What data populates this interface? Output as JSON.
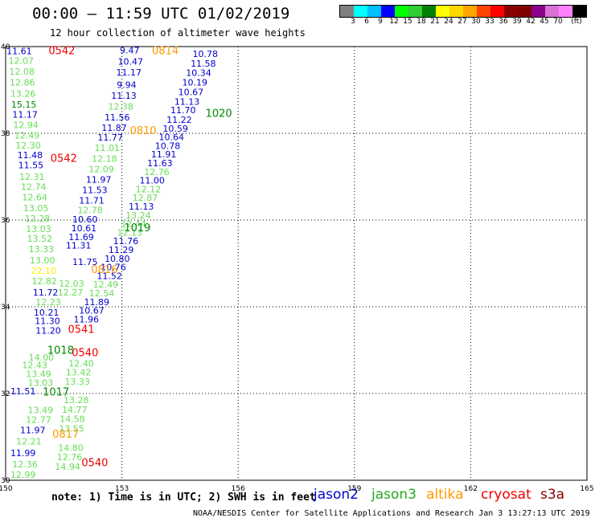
{
  "header": {
    "title": "00:00 – 11:59 UTC 01/02/2019",
    "subtitle": "12 hour collection of altimeter wave heights"
  },
  "colorbar": {
    "colors": [
      "#808080",
      "#00ffff",
      "#00bfff",
      "#0000ff",
      "#00ff00",
      "#32cd32",
      "#008000",
      "#ffff00",
      "#ffd700",
      "#ffa500",
      "#ff4500",
      "#ff0000",
      "#8b0000",
      "#800000",
      "#8b008b",
      "#da70d6",
      "#ff80ff",
      "#000000"
    ],
    "labels": [
      "3",
      "6",
      "9",
      "12",
      "15",
      "18",
      "21",
      "24",
      "27",
      "30",
      "33",
      "36",
      "39",
      "42",
      "45",
      "70",
      "(ft)"
    ]
  },
  "axes": {
    "lon_ticks": [
      "150",
      "153",
      "156",
      "159",
      "162",
      "165"
    ],
    "lat_ticks": [
      "30",
      "32",
      "34",
      "36",
      "38",
      "40"
    ],
    "lon_range": [
      150,
      165
    ],
    "lat_range": [
      30,
      40
    ]
  },
  "series_colors": {
    "jason2": "#0000cc",
    "jason3": "#66dd55",
    "jason3_dark": "#008800",
    "altika": "#ff9900",
    "cryosat": "#ee0000",
    "s3a": "#880000",
    "yellow": "#ffee00"
  },
  "time_labels": [
    {
      "text": "0542",
      "lon": 151.45,
      "lat": 39.82,
      "color": "cryosat"
    },
    {
      "text": "0814",
      "lon": 154.12,
      "lat": 39.82,
      "color": "altika"
    },
    {
      "text": "1020",
      "lon": 155.5,
      "lat": 38.38,
      "color": "jason3_dark"
    },
    {
      "text": "0810",
      "lon": 153.55,
      "lat": 37.98,
      "color": "altika"
    },
    {
      "text": "0542",
      "lon": 151.5,
      "lat": 37.34,
      "color": "cryosat"
    },
    {
      "text": "1019",
      "lon": 153.4,
      "lat": 35.74,
      "color": "jason3_dark"
    },
    {
      "text": "0816",
      "lon": 152.55,
      "lat": 34.78,
      "color": "altika"
    },
    {
      "text": "0541",
      "lon": 151.95,
      "lat": 33.4,
      "color": "cryosat"
    },
    {
      "text": "1018",
      "lon": 151.42,
      "lat": 32.92,
      "color": "jason3_dark"
    },
    {
      "text": "0540",
      "lon": 152.05,
      "lat": 32.86,
      "color": "cryosat"
    },
    {
      "text": "1017",
      "lon": 151.3,
      "lat": 31.95,
      "color": "jason3_dark"
    },
    {
      "text": "0817",
      "lon": 151.55,
      "lat": 30.98,
      "color": "altika"
    },
    {
      "text": "0540",
      "lon": 152.3,
      "lat": 30.32,
      "color": "cryosat"
    }
  ],
  "wave_heights": [
    {
      "text": "11.61",
      "lon": 150.35,
      "lat": 39.82,
      "color": "jason2"
    },
    {
      "text": "12.07",
      "lon": 150.4,
      "lat": 39.6,
      "color": "jason3"
    },
    {
      "text": "12.08",
      "lon": 150.42,
      "lat": 39.35,
      "color": "jason3"
    },
    {
      "text": "12.86",
      "lon": 150.43,
      "lat": 39.1,
      "color": "jason3"
    },
    {
      "text": "13.26",
      "lon": 150.45,
      "lat": 38.84,
      "color": "jason3"
    },
    {
      "text": "15.15",
      "lon": 150.47,
      "lat": 38.59,
      "color": "jason3_dark"
    },
    {
      "text": "11.17",
      "lon": 150.5,
      "lat": 38.36,
      "color": "jason2"
    },
    {
      "text": "12.94",
      "lon": 150.52,
      "lat": 38.12,
      "color": "jason3"
    },
    {
      "text": "12.49",
      "lon": 150.55,
      "lat": 37.88,
      "color": "jason3"
    },
    {
      "text": "12.30",
      "lon": 150.58,
      "lat": 37.65,
      "color": "jason3"
    },
    {
      "text": "11.48",
      "lon": 150.63,
      "lat": 37.43,
      "color": "jason2"
    },
    {
      "text": "11.55",
      "lon": 150.65,
      "lat": 37.19,
      "color": "jason2"
    },
    {
      "text": "12.31",
      "lon": 150.68,
      "lat": 36.93,
      "color": "jason3"
    },
    {
      "text": "12.74",
      "lon": 150.72,
      "lat": 36.69,
      "color": "jason3"
    },
    {
      "text": "12.64",
      "lon": 150.75,
      "lat": 36.45,
      "color": "jason3"
    },
    {
      "text": "13.05",
      "lon": 150.78,
      "lat": 36.2,
      "color": "jason3"
    },
    {
      "text": "12.28",
      "lon": 150.82,
      "lat": 35.96,
      "color": "jason3"
    },
    {
      "text": "13.03",
      "lon": 150.85,
      "lat": 35.72,
      "color": "jason3"
    },
    {
      "text": "13.52",
      "lon": 150.88,
      "lat": 35.5,
      "color": "jason3"
    },
    {
      "text": "13.33",
      "lon": 150.92,
      "lat": 35.26,
      "color": "jason3"
    },
    {
      "text": "13.00",
      "lon": 150.95,
      "lat": 35.0,
      "color": "jason3"
    },
    {
      "text": "22.10",
      "lon": 150.98,
      "lat": 34.76,
      "color": "yellow"
    },
    {
      "text": "12.82",
      "lon": 151.0,
      "lat": 34.52,
      "color": "jason3"
    },
    {
      "text": "11.72",
      "lon": 151.03,
      "lat": 34.26,
      "color": "jason2"
    },
    {
      "text": "12.23",
      "lon": 151.1,
      "lat": 34.04,
      "color": "jason3"
    },
    {
      "text": "10.21",
      "lon": 151.05,
      "lat": 33.8,
      "color": "jason2"
    },
    {
      "text": "11.30",
      "lon": 151.08,
      "lat": 33.6,
      "color": "jason2"
    },
    {
      "text": "11.20",
      "lon": 151.1,
      "lat": 33.38,
      "color": "jason2"
    },
    {
      "text": "14.00",
      "lon": 150.92,
      "lat": 32.76,
      "color": "jason3"
    },
    {
      "text": "12.43",
      "lon": 150.75,
      "lat": 32.58,
      "color": "jason3"
    },
    {
      "text": "13.49",
      "lon": 150.85,
      "lat": 32.38,
      "color": "jason3"
    },
    {
      "text": "13.03",
      "lon": 150.9,
      "lat": 32.18,
      "color": "jason3"
    },
    {
      "text": "11.51",
      "lon": 150.45,
      "lat": 31.98,
      "color": "jason2"
    },
    {
      "text": "13.49",
      "lon": 150.9,
      "lat": 31.55,
      "color": "jason3"
    },
    {
      "text": "12.77",
      "lon": 150.85,
      "lat": 31.32,
      "color": "jason3"
    },
    {
      "text": "11.97",
      "lon": 150.7,
      "lat": 31.08,
      "color": "jason2"
    },
    {
      "text": "12.21",
      "lon": 150.6,
      "lat": 30.82,
      "color": "jason3"
    },
    {
      "text": "11.99",
      "lon": 150.45,
      "lat": 30.56,
      "color": "jason2"
    },
    {
      "text": "12.36",
      "lon": 150.5,
      "lat": 30.3,
      "color": "jason3"
    },
    {
      "text": "12.99",
      "lon": 150.45,
      "lat": 30.06,
      "color": "jason3"
    },
    {
      "text": "9.47",
      "lon": 153.2,
      "lat": 39.84,
      "color": "jason2"
    },
    {
      "text": "10.47",
      "lon": 153.22,
      "lat": 39.58,
      "color": "jason2"
    },
    {
      "text": "11.17",
      "lon": 153.18,
      "lat": 39.33,
      "color": "jason2"
    },
    {
      "text": "9.94",
      "lon": 153.12,
      "lat": 39.05,
      "color": "jason2"
    },
    {
      "text": "11.13",
      "lon": 153.05,
      "lat": 38.8,
      "color": "jason2"
    },
    {
      "text": "12.38",
      "lon": 152.97,
      "lat": 38.55,
      "color": "jason3"
    },
    {
      "text": "11.56",
      "lon": 152.88,
      "lat": 38.3,
      "color": "jason2"
    },
    {
      "text": "11.87",
      "lon": 152.8,
      "lat": 38.06,
      "color": "jason2"
    },
    {
      "text": "11.77",
      "lon": 152.7,
      "lat": 37.83,
      "color": "jason2"
    },
    {
      "text": "11.01",
      "lon": 152.62,
      "lat": 37.59,
      "color": "jason3"
    },
    {
      "text": "12.18",
      "lon": 152.55,
      "lat": 37.34,
      "color": "jason3"
    },
    {
      "text": "12.09",
      "lon": 152.47,
      "lat": 37.1,
      "color": "jason3"
    },
    {
      "text": "11.97",
      "lon": 152.4,
      "lat": 36.86,
      "color": "jason2"
    },
    {
      "text": "11.53",
      "lon": 152.3,
      "lat": 36.62,
      "color": "jason2"
    },
    {
      "text": "11.71",
      "lon": 152.22,
      "lat": 36.38,
      "color": "jason2"
    },
    {
      "text": "12.78",
      "lon": 152.18,
      "lat": 36.16,
      "color": "jason3"
    },
    {
      "text": "10.60",
      "lon": 152.05,
      "lat": 35.94,
      "color": "jason2"
    },
    {
      "text": "10.61",
      "lon": 152.02,
      "lat": 35.74,
      "color": "jason2"
    },
    {
      "text": "11.69",
      "lon": 151.95,
      "lat": 35.54,
      "color": "jason2"
    },
    {
      "text": "11.31",
      "lon": 151.88,
      "lat": 35.34,
      "color": "jason2"
    },
    {
      "text": "11.75",
      "lon": 152.05,
      "lat": 34.96,
      "color": "jason2"
    },
    {
      "text": "12.03",
      "lon": 151.7,
      "lat": 34.46,
      "color": "jason3"
    },
    {
      "text": "12.27",
      "lon": 151.67,
      "lat": 34.26,
      "color": "jason3"
    },
    {
      "text": "10.78",
      "lon": 155.15,
      "lat": 39.76,
      "color": "jason2"
    },
    {
      "text": "11.58",
      "lon": 155.1,
      "lat": 39.54,
      "color": "jason2"
    },
    {
      "text": "10.34",
      "lon": 154.98,
      "lat": 39.32,
      "color": "jason2"
    },
    {
      "text": "10.19",
      "lon": 154.88,
      "lat": 39.1,
      "color": "jason2"
    },
    {
      "text": "10.67",
      "lon": 154.78,
      "lat": 38.88,
      "color": "jason2"
    },
    {
      "text": "11.13",
      "lon": 154.68,
      "lat": 38.66,
      "color": "jason2"
    },
    {
      "text": "11.70",
      "lon": 154.58,
      "lat": 38.46,
      "color": "jason2"
    },
    {
      "text": "11.22",
      "lon": 154.48,
      "lat": 38.24,
      "color": "jason2"
    },
    {
      "text": "10.59",
      "lon": 154.38,
      "lat": 38.04,
      "color": "jason2"
    },
    {
      "text": "10.64",
      "lon": 154.28,
      "lat": 37.84,
      "color": "jason2"
    },
    {
      "text": "10.78",
      "lon": 154.18,
      "lat": 37.64,
      "color": "jason2"
    },
    {
      "text": "11.91",
      "lon": 154.08,
      "lat": 37.44,
      "color": "jason2"
    },
    {
      "text": "11.63",
      "lon": 153.98,
      "lat": 37.24,
      "color": "jason2"
    },
    {
      "text": "12.76",
      "lon": 153.9,
      "lat": 37.04,
      "color": "jason3"
    },
    {
      "text": "11.00",
      "lon": 153.78,
      "lat": 36.84,
      "color": "jason2"
    },
    {
      "text": "12.12",
      "lon": 153.68,
      "lat": 36.64,
      "color": "jason3"
    },
    {
      "text": "12.87",
      "lon": 153.6,
      "lat": 36.44,
      "color": "jason3"
    },
    {
      "text": "11.13",
      "lon": 153.5,
      "lat": 36.24,
      "color": "jason2"
    },
    {
      "text": "13.24",
      "lon": 153.42,
      "lat": 36.04,
      "color": "jason3"
    },
    {
      "text": "12.44",
      "lon": 153.3,
      "lat": 35.84,
      "color": "jason3"
    },
    {
      "text": "12.13",
      "lon": 153.2,
      "lat": 35.64,
      "color": "jason3"
    },
    {
      "text": "11.76",
      "lon": 153.1,
      "lat": 35.44,
      "color": "jason2"
    },
    {
      "text": "11.29",
      "lon": 152.98,
      "lat": 35.24,
      "color": "jason2"
    },
    {
      "text": "10.80",
      "lon": 152.88,
      "lat": 35.04,
      "color": "jason2"
    },
    {
      "text": "10.76",
      "lon": 152.78,
      "lat": 34.84,
      "color": "jason2"
    },
    {
      "text": "11.52",
      "lon": 152.68,
      "lat": 34.64,
      "color": "jason2"
    },
    {
      "text": "12.49",
      "lon": 152.58,
      "lat": 34.44,
      "color": "jason3"
    },
    {
      "text": "12.54",
      "lon": 152.48,
      "lat": 34.24,
      "color": "jason3"
    },
    {
      "text": "11.89",
      "lon": 152.35,
      "lat": 34.04,
      "color": "jason2"
    },
    {
      "text": "10.67",
      "lon": 152.22,
      "lat": 33.84,
      "color": "jason2"
    },
    {
      "text": "11.96",
      "lon": 152.08,
      "lat": 33.64,
      "color": "jason2"
    },
    {
      "text": "12.40",
      "lon": 151.95,
      "lat": 32.62,
      "color": "jason3"
    },
    {
      "text": "13.42",
      "lon": 151.88,
      "lat": 32.42,
      "color": "jason3"
    },
    {
      "text": "13.33",
      "lon": 151.85,
      "lat": 32.2,
      "color": "jason3"
    },
    {
      "text": "13.28",
      "lon": 151.82,
      "lat": 31.78,
      "color": "jason3"
    },
    {
      "text": "14.77",
      "lon": 151.78,
      "lat": 31.56,
      "color": "jason3"
    },
    {
      "text": "14.58",
      "lon": 151.72,
      "lat": 31.34,
      "color": "jason3"
    },
    {
      "text": "13.55",
      "lon": 151.7,
      "lat": 31.12,
      "color": "jason3"
    },
    {
      "text": "14.80",
      "lon": 151.68,
      "lat": 30.68,
      "color": "jason3"
    },
    {
      "text": "12.76",
      "lon": 151.65,
      "lat": 30.46,
      "color": "jason3"
    },
    {
      "text": "14.94",
      "lon": 151.6,
      "lat": 30.24,
      "color": "jason3"
    }
  ],
  "footer": {
    "note": "note: 1) Time is in UTC; 2) SWH is in feet",
    "legend": [
      {
        "label": "jason2",
        "color": "#0000cc",
        "left": 390
      },
      {
        "label": "jason3",
        "color": "#22aa22",
        "left": 462
      },
      {
        "label": "altika",
        "color": "#ff9900",
        "left": 530
      },
      {
        "label": "cryosat",
        "color": "#ee0000",
        "left": 598
      },
      {
        "label": "s3a",
        "color": "#880000",
        "left": 672
      }
    ],
    "credit": "NOAA/NESDIS Center for Satellite Applications and Research    Jan  3 13:27:13 UTC 2019"
  }
}
